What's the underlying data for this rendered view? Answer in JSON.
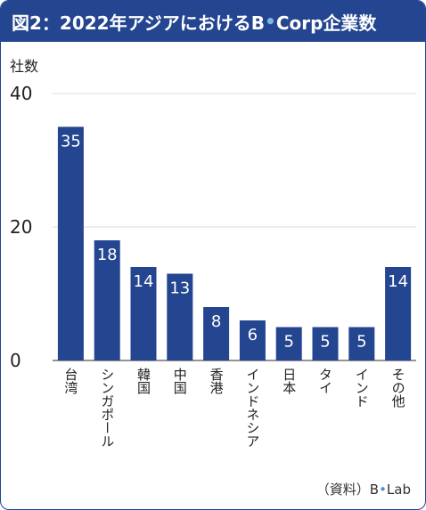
{
  "header": {
    "title_prefix": "図2：2022年アジアにおけるB",
    "title_dot": "•",
    "title_suffix": "Corp企業数"
  },
  "colors": {
    "bar": "#24458f",
    "title_bg": "#24458f",
    "grid": "#dddddd"
  },
  "source": {
    "prefix": "（資料）B",
    "dot": "•",
    "suffix": "Lab"
  },
  "chart_data": {
    "type": "bar",
    "title": "図2：2022年アジアにおけるB•Corp企業数",
    "ylabel": "社数",
    "xlabel": "",
    "ylim": [
      0,
      40
    ],
    "yticks": [
      0,
      20,
      40
    ],
    "grid": true,
    "categories": [
      "台湾",
      "シンガポール",
      "韓国",
      "中国",
      "香港",
      "インドネシア",
      "日本",
      "タイ",
      "インド",
      "その他"
    ],
    "values": [
      35,
      18,
      14,
      13,
      8,
      6,
      5,
      5,
      5,
      14
    ]
  }
}
